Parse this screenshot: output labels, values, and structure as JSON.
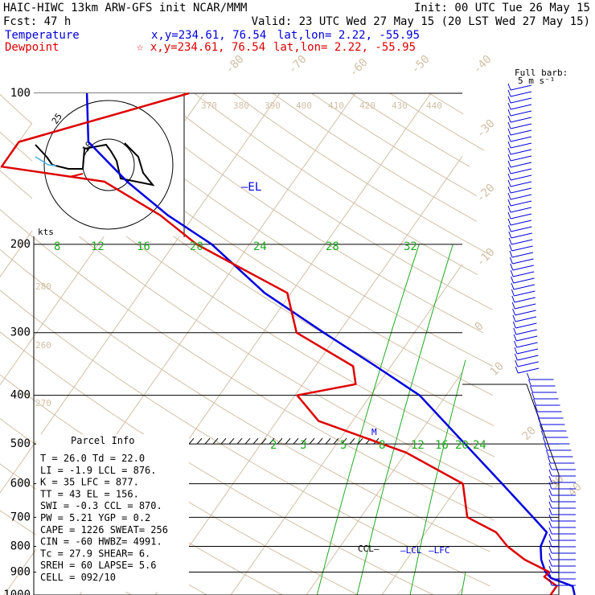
{
  "header": {
    "title": "HAIC-HIWC 13km ARW-GFS init   NCAR/MMM",
    "init": "Init: 00 UTC Tue 26 May 15",
    "fcst": "Fcst:   47 h",
    "valid": "Valid: 23 UTC Wed 27 May 15 (20 LST Wed 27 May 15)",
    "temp_label": "Temperature",
    "temp_xy": "x,y=234.61, 76.54",
    "temp_latlon": "lat,lon=  2.22, -55.95",
    "dew_label": "Dewpoint",
    "dew_xy": "☆ x,y=234.61, 76.54",
    "dew_latlon": "lat,lon=  2.22, -55.95",
    "barb_scale_1": "Full barb:",
    "barb_scale_2": "5 m s⁻¹"
  },
  "colors": {
    "temperature": "#0000dd",
    "dewpoint": "#dd0000",
    "isotherm": "#d2bfa4",
    "mixing_ratio": "#22aa22",
    "isobar": "#000000"
  },
  "hodograph": {
    "unit_label": "kts",
    "ring_labels": [
      "25",
      "10"
    ]
  },
  "chart_data": {
    "type": "line",
    "title": "",
    "pressure_levels": [
      "100",
      "200",
      "300",
      "400",
      "500",
      "600",
      "700",
      "800",
      "900",
      "1000"
    ],
    "isotherm_labels": [
      "-80",
      "-70",
      "-60",
      "-50",
      "-40",
      "-30",
      "-20",
      "-10",
      "0",
      "10",
      "20",
      "30",
      "40"
    ],
    "theta_labels": [
      "370",
      "380",
      "390",
      "400",
      "410",
      "420",
      "430",
      "440",
      "280",
      "270",
      "260"
    ],
    "mixing_ratio_upper": [
      "8",
      "12",
      "16",
      "20",
      "24",
      "28",
      "32"
    ],
    "mixing_ratio_lower": [
      "2",
      "3",
      "5",
      "8",
      "12",
      "16",
      "20",
      "24"
    ],
    "annotations": [
      "EL",
      "M",
      "CCL",
      "LCL",
      "LFC"
    ],
    "series": [
      {
        "name": "Temperature",
        "values": [
          [
            1000,
            25.5
          ],
          [
            960,
            24.4
          ],
          [
            925,
            20.8
          ],
          [
            900,
            19.5
          ],
          [
            850,
            17.8
          ],
          [
            800,
            16.5
          ],
          [
            750,
            16.0
          ],
          [
            700,
            12.8
          ],
          [
            600,
            5.6
          ],
          [
            500,
            -3.0
          ],
          [
            400,
            -13.5
          ],
          [
            350,
            -22.0
          ],
          [
            300,
            -32.0
          ],
          [
            250,
            -43.5
          ],
          [
            200,
            -55.0
          ],
          [
            175,
            -63.5
          ],
          [
            150,
            -72.0
          ],
          [
            125,
            -80.8
          ],
          [
            100,
            -85.5
          ]
        ]
      },
      {
        "name": "Dewpoint",
        "values": [
          [
            1000,
            22.3
          ],
          [
            960,
            22.3
          ],
          [
            920,
            19.8
          ],
          [
            900,
            20.0
          ],
          [
            850,
            15.6
          ],
          [
            800,
            12.1
          ],
          [
            750,
            9.3
          ],
          [
            700,
            4.1
          ],
          [
            600,
            0.4
          ],
          [
            520,
            -10.0
          ],
          [
            450,
            -24.5
          ],
          [
            400,
            -29.7
          ],
          [
            380,
            -23.0
          ],
          [
            350,
            -25.0
          ],
          [
            300,
            -35.6
          ],
          [
            250,
            -40.5
          ],
          [
            200,
            -57.0
          ],
          [
            175,
            -64.5
          ],
          [
            150,
            -75.0
          ],
          [
            140,
            -90.0
          ],
          [
            125,
            -90.0
          ],
          [
            100,
            -72.0
          ]
        ]
      }
    ]
  },
  "parcel_info": {
    "title": "Parcel Info",
    "rows": [
      "T  =   26.0  Td =  22.0",
      "LI =   -1.9 LCL =  876.",
      "K  =     35 LFC =  877.",
      "TT =     43  EL =  156.",
      "SWI =  -0.3 CCL =  870.",
      "PW =   5.21 YGP =   0.2",
      "CAPE =  1226 SWEAT=  256",
      "CIN =   -60 HWBZ= 4991.",
      "Tc =   27.9 SHEAR=    6.",
      "SREH =   60 LAPSE=   5.6",
      "CELL = 092/10"
    ]
  }
}
